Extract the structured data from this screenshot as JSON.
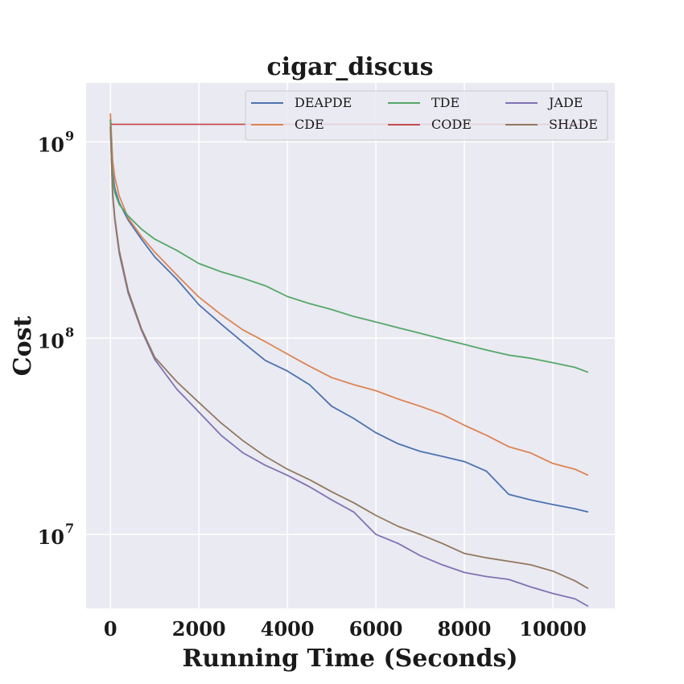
{
  "chart_data": {
    "type": "line",
    "title": "cigar_discus",
    "xlabel": "Running Time (Seconds)",
    "ylabel": "Cost",
    "xscale": "linear",
    "yscale": "log",
    "xlim": [
      -550,
      11400
    ],
    "ylim": [
      4200000,
      2000000000
    ],
    "xticks": [
      0,
      2000,
      4000,
      6000,
      8000,
      10000
    ],
    "xtick_labels": [
      "0",
      "2000",
      "4000",
      "6000",
      "8000",
      "10000"
    ],
    "yticks": [
      {
        "value": 10000000,
        "base": "10",
        "exp": "7"
      },
      {
        "value": 100000000,
        "base": "10",
        "exp": "8"
      },
      {
        "value": 1000000000,
        "base": "10",
        "exp": "9"
      }
    ],
    "grid": true,
    "background": "#eaeaf2",
    "legend": {
      "location": "top-right",
      "columns": 3
    },
    "series": [
      {
        "name": "DEAPDE",
        "color": "#4c72b0",
        "x": [
          0,
          50,
          100,
          200,
          400,
          700,
          1000,
          1500,
          2000,
          2500,
          3000,
          3500,
          4000,
          4500,
          5000,
          5500,
          6000,
          6500,
          7000,
          7500,
          8000,
          8500,
          9000,
          9500,
          10000,
          10500,
          10800
        ],
        "y": [
          1300000000,
          700000000,
          580000000,
          490000000,
          400000000,
          320000000,
          260000000,
          200000000,
          148000000,
          118000000,
          95000000,
          77000000,
          68000000,
          58000000,
          45000000,
          39000000,
          33000000,
          29000000,
          26500000,
          25000000,
          23500000,
          21000000,
          16000000,
          15000000,
          14200000,
          13500000,
          13000000
        ]
      },
      {
        "name": "CDE",
        "color": "#dd8452",
        "x": [
          0,
          50,
          100,
          200,
          400,
          700,
          1000,
          1500,
          2000,
          2500,
          3000,
          3500,
          4000,
          4500,
          5000,
          5500,
          6000,
          6500,
          7000,
          7500,
          8000,
          8500,
          9000,
          9500,
          10000,
          10500,
          10800
        ],
        "y": [
          1400000000,
          800000000,
          660000000,
          530000000,
          410000000,
          330000000,
          275000000,
          210000000,
          162000000,
          132000000,
          110000000,
          96000000,
          83000000,
          72000000,
          63000000,
          58000000,
          54000000,
          49000000,
          45000000,
          41000000,
          36000000,
          32000000,
          28000000,
          26000000,
          23000000,
          21500000,
          20000000
        ]
      },
      {
        "name": "TDE",
        "color": "#55a868",
        "x": [
          0,
          50,
          100,
          200,
          400,
          700,
          1000,
          1500,
          2000,
          2500,
          3000,
          3500,
          4000,
          4500,
          5000,
          5500,
          6000,
          6500,
          7000,
          7500,
          8000,
          8500,
          9000,
          9500,
          10000,
          10500,
          10800
        ],
        "y": [
          1300000000,
          650000000,
          550000000,
          480000000,
          420000000,
          360000000,
          320000000,
          280000000,
          240000000,
          218000000,
          202000000,
          185000000,
          163000000,
          150000000,
          140000000,
          129000000,
          121000000,
          113000000,
          106000000,
          99000000,
          93000000,
          87000000,
          82000000,
          79000000,
          75000000,
          71000000,
          67000000
        ]
      },
      {
        "name": "CODE",
        "color": "#c44e52",
        "x": [
          0,
          10800
        ],
        "y": [
          1230000000,
          1230000000
        ]
      },
      {
        "name": "JADE",
        "color": "#8172b3",
        "x": [
          0,
          50,
          100,
          200,
          400,
          700,
          1000,
          1500,
          2000,
          2500,
          3000,
          3500,
          4000,
          4500,
          5000,
          5500,
          6000,
          6500,
          7000,
          7500,
          8000,
          8500,
          9000,
          9500,
          10000,
          10500,
          10800
        ],
        "y": [
          1200000000,
          530000000,
          400000000,
          270000000,
          170000000,
          110000000,
          78000000,
          55000000,
          42000000,
          32000000,
          26000000,
          22500000,
          20000000,
          17500000,
          15000000,
          13000000,
          10000000,
          9000000,
          7800000,
          7000000,
          6400000,
          6100000,
          5900000,
          5400000,
          5000000,
          4700000,
          4300000
        ]
      },
      {
        "name": "SHADE",
        "color": "#937860",
        "x": [
          0,
          50,
          100,
          200,
          400,
          700,
          1000,
          1500,
          2000,
          2500,
          3000,
          3500,
          4000,
          4500,
          5000,
          5500,
          6000,
          6500,
          7000,
          7500,
          8000,
          8500,
          9000,
          9500,
          10000,
          10500,
          10800
        ],
        "y": [
          1200000000,
          550000000,
          410000000,
          280000000,
          175000000,
          112000000,
          80000000,
          60000000,
          47000000,
          37000000,
          30000000,
          25000000,
          21500000,
          19000000,
          16500000,
          14500000,
          12500000,
          11000000,
          10000000,
          9000000,
          8000000,
          7600000,
          7300000,
          7000000,
          6500000,
          5800000,
          5300000
        ]
      }
    ]
  }
}
